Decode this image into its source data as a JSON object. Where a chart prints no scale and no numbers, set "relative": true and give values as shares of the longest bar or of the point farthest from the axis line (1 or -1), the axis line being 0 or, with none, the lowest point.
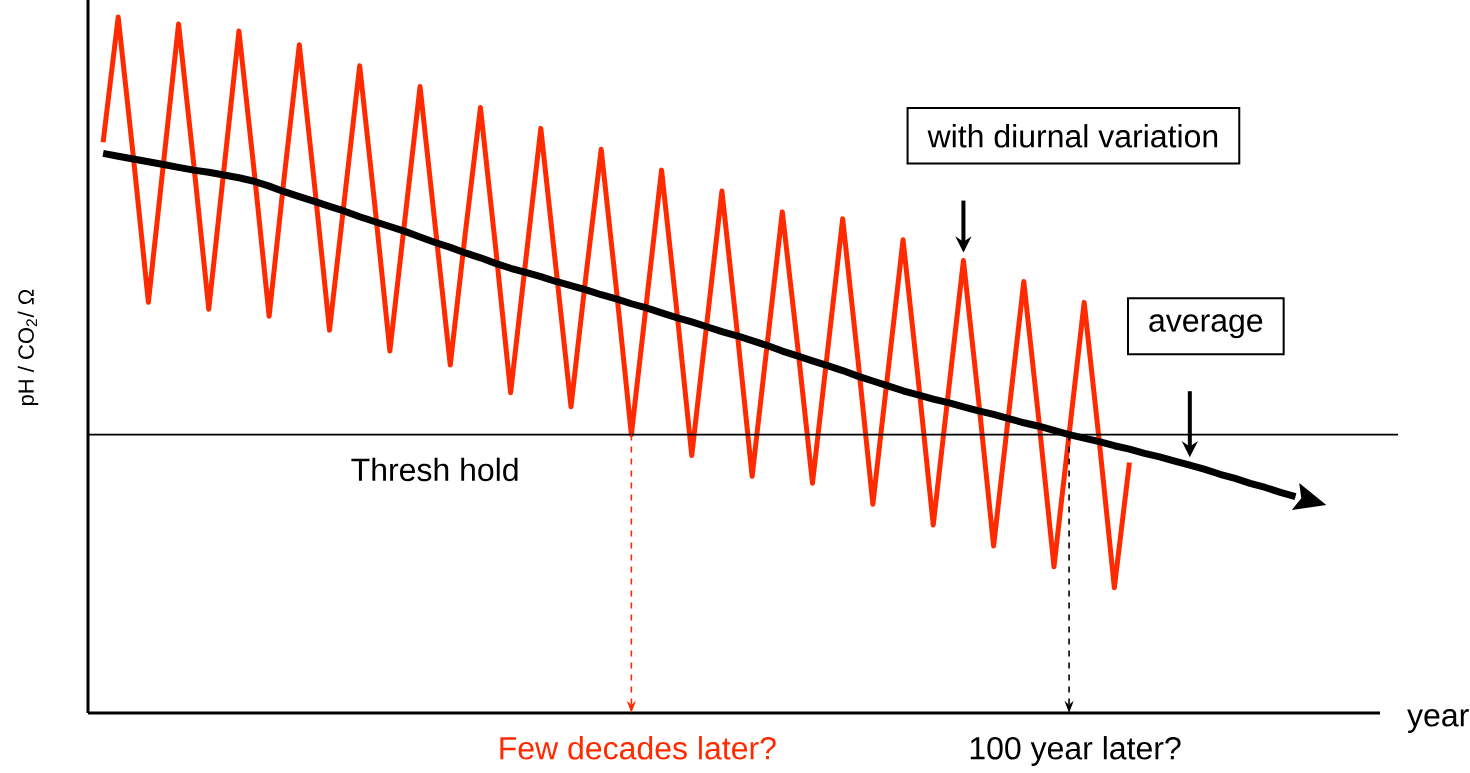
{
  "chart_data": {
    "type": "line",
    "relative": true,
    "xlabel": "year",
    "ylabel": "pH / CO$_{2}$/ Ω",
    "marker": "none",
    "categories": [
      null,
      null,
      null,
      null,
      null,
      null,
      null,
      null,
      null,
      null,
      null,
      null,
      null,
      null,
      null,
      null,
      null,
      null,
      null,
      null,
      null,
      null,
      null,
      null,
      null,
      null,
      null,
      null,
      null,
      null,
      null,
      null,
      null,
      null,
      null,
      null,
      null,
      null,
      null,
      null,
      null,
      null,
      null,
      null,
      null,
      null,
      null,
      null,
      null,
      null,
      null,
      null,
      null,
      null,
      null,
      null,
      null,
      null,
      null,
      null,
      null,
      null,
      null,
      null,
      null,
      null,
      null,
      null,
      null,
      null,
      null,
      null,
      null,
      null,
      null,
      null,
      null,
      null,
      null,
      null
    ],
    "series": [
      {
        "color": "#ff2a00",
        "values": [
          0.82,
          1.0,
          0.8,
          0.59,
          0.79,
          0.99,
          0.79,
          0.58,
          0.78,
          0.98,
          0.78,
          0.57,
          0.77,
          0.96,
          0.76,
          0.55,
          0.74,
          0.93,
          0.73,
          0.52,
          0.71,
          0.9,
          0.7,
          0.5,
          0.69,
          0.87,
          0.67,
          0.46,
          0.65,
          0.84,
          0.64,
          0.44,
          0.63,
          0.81,
          0.61,
          0.4,
          0.59,
          0.78,
          0.58,
          0.37,
          0.56,
          0.75,
          0.55,
          0.34,
          0.53,
          0.72,
          0.53,
          0.33,
          0.52,
          0.71,
          0.51,
          0.3,
          0.49,
          0.68,
          0.48,
          0.27,
          0.46,
          0.65,
          0.45,
          0.24,
          0.43,
          0.62,
          0.42,
          0.21,
          0.4,
          0.59,
          0.39,
          0.18,
          0.36,
          null,
          null,
          null,
          null,
          null,
          null,
          null,
          null,
          null,
          null,
          null
        ]
      },
      {
        "color": "#000000",
        "values": [
          0.804,
          0.8,
          0.796,
          0.792,
          0.788,
          0.784,
          0.78,
          0.777,
          0.773,
          0.769,
          0.764,
          0.757,
          0.749,
          0.742,
          0.735,
          0.728,
          0.721,
          0.713,
          0.706,
          0.699,
          0.692,
          0.684,
          0.676,
          0.669,
          0.661,
          0.654,
          0.646,
          0.639,
          0.633,
          0.627,
          0.62,
          0.614,
          0.608,
          0.601,
          0.595,
          0.588,
          0.582,
          0.575,
          0.568,
          0.562,
          0.555,
          0.548,
          0.542,
          0.535,
          0.528,
          0.52,
          0.513,
          0.506,
          0.499,
          0.492,
          0.484,
          0.477,
          0.47,
          0.463,
          0.457,
          0.451,
          0.446,
          0.44,
          0.434,
          0.429,
          0.423,
          0.417,
          0.412,
          0.406,
          0.4,
          0.395,
          0.39,
          0.384,
          0.379,
          0.373,
          0.368,
          0.362,
          0.356,
          0.35,
          0.343,
          0.337,
          0.33,
          0.324,
          0.317,
          0.311
        ]
      }
    ],
    "ref_lines": [
      {
        "axis": "y",
        "value": 0.4,
        "label": "Thresh hold",
        "color": "#000000"
      }
    ],
    "annotations": [
      "with diurnal variation",
      "average",
      "Few decades later?",
      "100 year later?"
    ]
  }
}
